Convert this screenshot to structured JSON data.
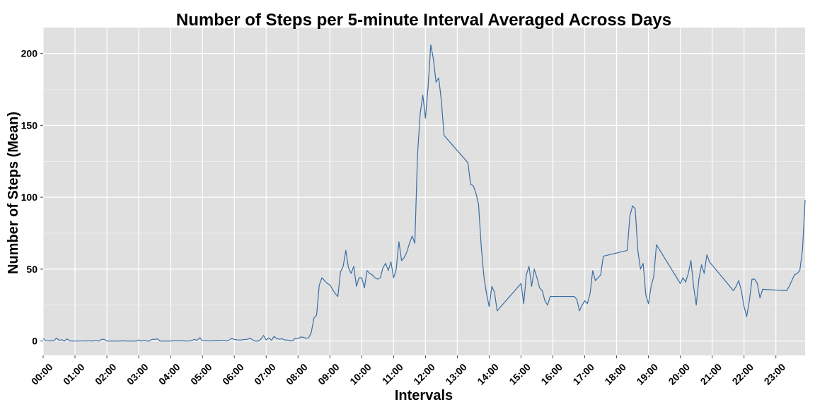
{
  "chart_data": {
    "type": "line",
    "title": "Number of Steps per 5-minute Interval Averaged Across Days",
    "xlabel": "Intervals",
    "ylabel": "Number of Steps (Mean)",
    "grid": true,
    "background": "#e0e0e0",
    "gridColor": "#ffffff",
    "lineColor": "#3a6ea5",
    "xlim": [
      0,
      1435
    ],
    "ylim": [
      -10,
      218
    ],
    "x_ticks": [
      {
        "value": 0,
        "label": "00:00"
      },
      {
        "value": 60,
        "label": "01:00"
      },
      {
        "value": 120,
        "label": "02:00"
      },
      {
        "value": 180,
        "label": "03:00"
      },
      {
        "value": 240,
        "label": "04:00"
      },
      {
        "value": 300,
        "label": "05:00"
      },
      {
        "value": 360,
        "label": "06:00"
      },
      {
        "value": 420,
        "label": "07:00"
      },
      {
        "value": 480,
        "label": "08:00"
      },
      {
        "value": 540,
        "label": "09:00"
      },
      {
        "value": 600,
        "label": "10:00"
      },
      {
        "value": 660,
        "label": "11:00"
      },
      {
        "value": 720,
        "label": "12:00"
      },
      {
        "value": 780,
        "label": "13:00"
      },
      {
        "value": 840,
        "label": "14:00"
      },
      {
        "value": 900,
        "label": "15:00"
      },
      {
        "value": 960,
        "label": "16:00"
      },
      {
        "value": 1020,
        "label": "17:00"
      },
      {
        "value": 1080,
        "label": "18:00"
      },
      {
        "value": 1140,
        "label": "19:00"
      },
      {
        "value": 1200,
        "label": "20:00"
      },
      {
        "value": 1260,
        "label": "21:00"
      },
      {
        "value": 1320,
        "label": "22:00"
      },
      {
        "value": 1380,
        "label": "23:00"
      }
    ],
    "y_ticks": [
      {
        "value": 0,
        "label": "0"
      },
      {
        "value": 50,
        "label": "50"
      },
      {
        "value": 100,
        "label": "100"
      },
      {
        "value": 150,
        "label": "150"
      },
      {
        "value": 200,
        "label": "200"
      }
    ],
    "series": [
      {
        "points": [
          [
            0,
            1.7
          ],
          [
            5,
            0.3
          ],
          [
            10,
            0.1
          ],
          [
            15,
            0.2
          ],
          [
            20,
            0.1
          ],
          [
            25,
            2.1
          ],
          [
            30,
            0.5
          ],
          [
            35,
            0.9
          ],
          [
            40,
            0
          ],
          [
            45,
            1.5
          ],
          [
            50,
            0.2
          ],
          [
            55,
            0
          ],
          [
            60,
            0
          ],
          [
            65,
            0
          ],
          [
            70,
            0.1
          ],
          [
            75,
            0.1
          ],
          [
            80,
            0
          ],
          [
            85,
            0.3
          ],
          [
            90,
            0
          ],
          [
            95,
            0.2
          ],
          [
            100,
            0.4
          ],
          [
            105,
            0
          ],
          [
            110,
            1.1
          ],
          [
            115,
            1.2
          ],
          [
            120,
            0
          ],
          [
            125,
            0
          ],
          [
            130,
            0
          ],
          [
            135,
            0
          ],
          [
            140,
            0
          ],
          [
            145,
            0
          ],
          [
            150,
            0.2
          ],
          [
            155,
            0
          ],
          [
            160,
            0
          ],
          [
            165,
            0
          ],
          [
            170,
            0
          ],
          [
            175,
            0
          ],
          [
            180,
            0.8
          ],
          [
            185,
            0
          ],
          [
            190,
            0.6
          ],
          [
            195,
            0
          ],
          [
            200,
            0
          ],
          [
            205,
            1.2
          ],
          [
            210,
            1.1
          ],
          [
            215,
            1.5
          ],
          [
            220,
            0
          ],
          [
            225,
            0
          ],
          [
            230,
            0
          ],
          [
            235,
            0
          ],
          [
            240,
            0
          ],
          [
            245,
            0.2
          ],
          [
            250,
            0.4
          ],
          [
            255,
            0.2
          ],
          [
            260,
            0.2
          ],
          [
            265,
            0.1
          ],
          [
            270,
            0
          ],
          [
            275,
            0.1
          ],
          [
            280,
            0.5
          ],
          [
            285,
            1.1
          ],
          [
            290,
            0.5
          ],
          [
            295,
            2.3
          ],
          [
            300,
            0.1
          ],
          [
            305,
            0.4
          ],
          [
            310,
            0.2
          ],
          [
            315,
            0.1
          ],
          [
            320,
            0.2
          ],
          [
            325,
            0.4
          ],
          [
            330,
            0.5
          ],
          [
            335,
            0.4
          ],
          [
            340,
            0.6
          ],
          [
            345,
            0.1
          ],
          [
            350,
            0.6
          ],
          [
            355,
            1.9
          ],
          [
            360,
            1.1
          ],
          [
            365,
            0.8
          ],
          [
            370,
            0.7
          ],
          [
            375,
            0.8
          ],
          [
            380,
            1.1
          ],
          [
            385,
            1.2
          ],
          [
            390,
            2.0
          ],
          [
            395,
            0.6
          ],
          [
            400,
            0
          ],
          [
            405,
            0
          ],
          [
            410,
            1.2
          ],
          [
            415,
            3.9
          ],
          [
            420,
            0.8
          ],
          [
            425,
            2.2
          ],
          [
            430,
            0.5
          ],
          [
            435,
            3.2
          ],
          [
            440,
            1.7
          ],
          [
            445,
            1.2
          ],
          [
            450,
            1.6
          ],
          [
            455,
            0.7
          ],
          [
            460,
            0.7
          ],
          [
            465,
            0.2
          ],
          [
            470,
            0.2
          ],
          [
            475,
            2.0
          ],
          [
            480,
            1.8
          ],
          [
            485,
            2.8
          ],
          [
            490,
            2.6
          ],
          [
            495,
            2.0
          ],
          [
            500,
            2.2
          ],
          [
            505,
            6.0
          ],
          [
            510,
            16.0
          ],
          [
            515,
            18.0
          ],
          [
            520,
            39.0
          ],
          [
            525,
            44.0
          ],
          [
            530,
            42.0
          ],
          [
            535,
            40.0
          ],
          [
            540,
            39.0
          ],
          [
            545,
            36.0
          ],
          [
            550,
            33.0
          ],
          [
            555,
            31.0
          ],
          [
            560,
            48.0
          ],
          [
            565,
            52.0
          ],
          [
            570,
            63.0
          ],
          [
            575,
            51.0
          ],
          [
            580,
            47.0
          ],
          [
            585,
            52.0
          ],
          [
            590,
            38.0
          ],
          [
            595,
            44.0
          ],
          [
            600,
            44.0
          ],
          [
            605,
            37.0
          ],
          [
            610,
            49.0
          ],
          [
            615,
            47.0
          ],
          [
            620,
            46.0
          ],
          [
            625,
            44.0
          ],
          [
            630,
            43.0
          ],
          [
            635,
            44.0
          ],
          [
            640,
            51.0
          ],
          [
            645,
            54.0
          ],
          [
            650,
            49.0
          ],
          [
            655,
            55.0
          ],
          [
            660,
            44.0
          ],
          [
            665,
            50.0
          ],
          [
            670,
            69.0
          ],
          [
            675,
            56.0
          ],
          [
            680,
            58.0
          ],
          [
            685,
            62.0
          ],
          [
            690,
            68.0
          ],
          [
            695,
            73.0
          ],
          [
            700,
            68.0
          ],
          [
            705,
            129.0
          ],
          [
            710,
            158.0
          ],
          [
            715,
            171.0
          ],
          [
            720,
            155.0
          ],
          [
            725,
            177.0
          ],
          [
            730,
            206.0
          ],
          [
            735,
            196.0
          ],
          [
            740,
            180.0
          ],
          [
            745,
            183.0
          ],
          [
            750,
            167.0
          ],
          [
            755,
            143.0
          ],
          [
            800,
            124.0
          ],
          [
            805,
            109.0
          ],
          [
            810,
            108.0
          ],
          [
            815,
            103.0
          ],
          [
            820,
            95.0
          ],
          [
            825,
            66.0
          ],
          [
            830,
            45.0
          ],
          [
            835,
            33.0
          ],
          [
            840,
            24.0
          ],
          [
            845,
            38.0
          ],
          [
            850,
            34.0
          ],
          [
            855,
            21.0
          ],
          [
            900,
            40.0
          ],
          [
            905,
            26.0
          ],
          [
            910,
            46.0
          ],
          [
            915,
            52.0
          ],
          [
            920,
            38.0
          ],
          [
            925,
            50.0
          ],
          [
            930,
            44.0
          ],
          [
            935,
            37.0
          ],
          [
            940,
            35.0
          ],
          [
            945,
            28.0
          ],
          [
            950,
            25.0
          ],
          [
            955,
            31.0
          ],
          [
            1000,
            31.0
          ],
          [
            1005,
            29.0
          ],
          [
            1010,
            21.0
          ],
          [
            1015,
            25.0
          ],
          [
            1020,
            28.0
          ],
          [
            1025,
            26.0
          ],
          [
            1030,
            33.0
          ],
          [
            1035,
            49.0
          ],
          [
            1040,
            42.0
          ],
          [
            1045,
            44.0
          ],
          [
            1050,
            46.0
          ],
          [
            1055,
            59.0
          ],
          [
            1100,
            63.0
          ],
          [
            1105,
            87.0
          ],
          [
            1110,
            94.0
          ],
          [
            1115,
            92.0
          ],
          [
            1120,
            63.0
          ],
          [
            1125,
            50.0
          ],
          [
            1130,
            54.0
          ],
          [
            1135,
            32.0
          ],
          [
            1140,
            26.0
          ],
          [
            1145,
            38.0
          ],
          [
            1150,
            45.0
          ],
          [
            1155,
            67.0
          ],
          [
            1200,
            40.0
          ],
          [
            1205,
            44.0
          ],
          [
            1210,
            41.0
          ],
          [
            1215,
            47.0
          ],
          [
            1220,
            56.0
          ],
          [
            1225,
            38.0
          ],
          [
            1230,
            25.0
          ],
          [
            1235,
            43.0
          ],
          [
            1240,
            53.0
          ],
          [
            1245,
            47.0
          ],
          [
            1250,
            60.0
          ],
          [
            1255,
            55.0
          ],
          [
            1300,
            35.0
          ],
          [
            1305,
            38.0
          ],
          [
            1310,
            42.0
          ],
          [
            1315,
            35.0
          ],
          [
            1320,
            24.0
          ],
          [
            1325,
            17.0
          ],
          [
            1330,
            28.0
          ],
          [
            1335,
            43.0
          ],
          [
            1340,
            43.0
          ],
          [
            1345,
            40.0
          ],
          [
            1350,
            30.0
          ],
          [
            1355,
            36.0
          ],
          [
            1400,
            35.0
          ],
          [
            1405,
            38.0
          ],
          [
            1410,
            42.0
          ],
          [
            1415,
            46.0
          ],
          [
            1420,
            47.0
          ],
          [
            1425,
            49.0
          ],
          [
            1430,
            63.0
          ],
          [
            1435,
            98.0
          ]
        ]
      }
    ]
  }
}
